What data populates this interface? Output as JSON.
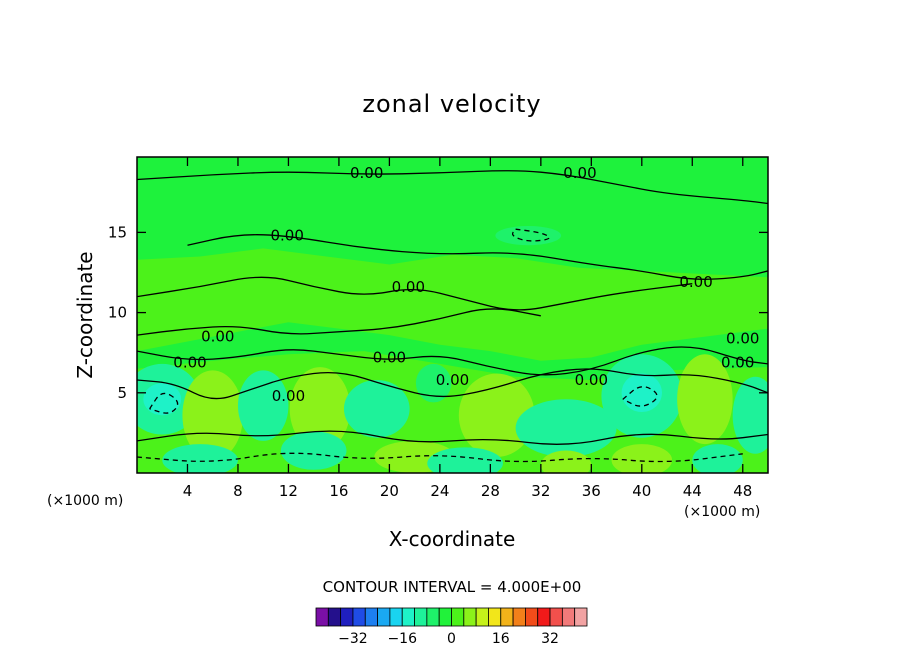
{
  "chart_data": {
    "type": "contour",
    "title": "zonal velocity",
    "xlabel": "X-coordinate",
    "ylabel": "Z-coordinate",
    "x_unit_left": "(×1000 m)",
    "x_unit_right": "(×1000 m)",
    "xlim": [
      0,
      50
    ],
    "ylim": [
      0,
      19.7
    ],
    "x_ticks": [
      4,
      8,
      12,
      16,
      20,
      24,
      28,
      32,
      36,
      40,
      44,
      48
    ],
    "y_ticks": [
      5,
      10,
      15
    ],
    "contour_interval_label": "CONTOUR INTERVAL = 4.000E+00",
    "contour_interval": 4.0,
    "contour_labels": [
      {
        "text": "0.00",
        "x": 18.2,
        "z": 18.7
      },
      {
        "text": "0.00",
        "x": 35.1,
        "z": 18.7
      },
      {
        "text": "0.00",
        "x": 11.9,
        "z": 14.8
      },
      {
        "text": "0.00",
        "x": 21.5,
        "z": 11.6
      },
      {
        "text": "0.00",
        "x": 44.3,
        "z": 11.9
      },
      {
        "text": "0.00",
        "x": 6.4,
        "z": 8.5
      },
      {
        "text": "0.00",
        "x": 4.2,
        "z": 6.9
      },
      {
        "text": "0.00",
        "x": 20.0,
        "z": 7.2
      },
      {
        "text": "0.00",
        "x": 12.0,
        "z": 4.8
      },
      {
        "text": "0.00",
        "x": 25.0,
        "z": 5.8
      },
      {
        "text": "0.00",
        "x": 36.0,
        "z": 5.8
      },
      {
        "text": "0.00",
        "x": 48.0,
        "z": 8.4
      },
      {
        "text": "0.00",
        "x": 47.6,
        "z": 6.9
      }
    ],
    "colorbar": {
      "colors": [
        "#7a0fa6",
        "#24108c",
        "#1f1fbf",
        "#1f4ce6",
        "#1d7ff0",
        "#1aa9f2",
        "#19d4f0",
        "#1ef2c8",
        "#1ef29a",
        "#1ef26a",
        "#21f23a",
        "#4cf21a",
        "#8bf21a",
        "#c6f21a",
        "#f2e61a",
        "#f2b31a",
        "#f2801a",
        "#f24c1a",
        "#f21a1a",
        "#f2504c",
        "#f27a7a",
        "#f2a3a3"
      ],
      "tick_labels": [
        "-32",
        "-16",
        "0",
        "16",
        "32"
      ],
      "tick_values": [
        -32,
        -16,
        0,
        16,
        32
      ]
    }
  }
}
